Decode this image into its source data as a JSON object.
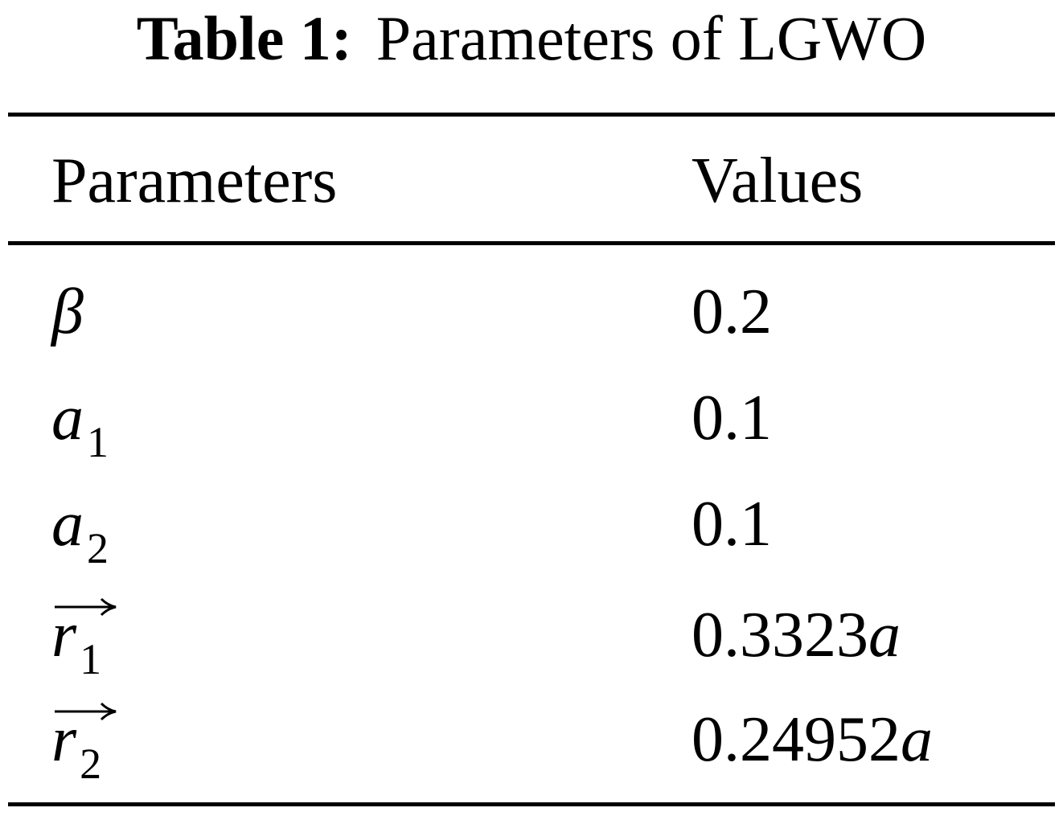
{
  "caption": {
    "label": "Table 1:",
    "title": "Parameters of LGWO"
  },
  "table": {
    "header": [
      "Parameters",
      "Values"
    ],
    "rows": [
      {
        "parameter": {
          "base": "β"
        },
        "value": {
          "number": "0.2"
        }
      },
      {
        "parameter": {
          "base": "a",
          "sub": "1"
        },
        "value": {
          "number": "0.1"
        }
      },
      {
        "parameter": {
          "base": "a",
          "sub": "2"
        },
        "value": {
          "number": "0.1"
        }
      },
      {
        "parameter": {
          "base": "r",
          "sub": "1",
          "vector": true
        },
        "value": {
          "number": "0.3323",
          "variable": "a"
        }
      },
      {
        "parameter": {
          "base": "r",
          "sub": "2",
          "vector": true
        },
        "value": {
          "number": "0.24952",
          "variable": "a"
        }
      }
    ]
  }
}
